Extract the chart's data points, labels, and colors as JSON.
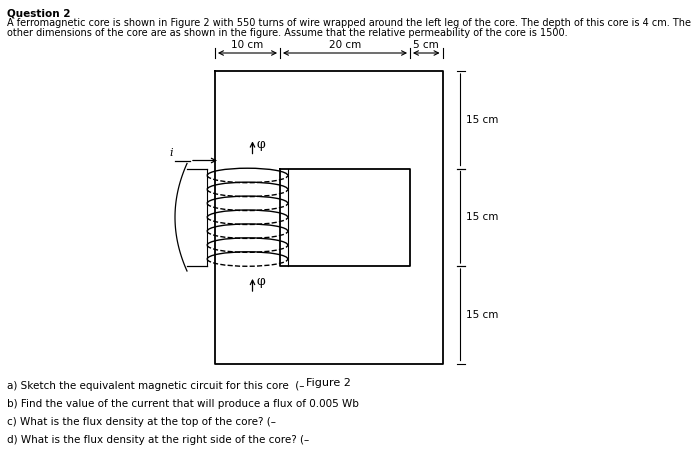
{
  "title": "Question 2",
  "desc1": "A ferromagnetic core is shown in Figure 2 with 550 turns of wire wrapped around the left leg of the core. The depth of this core is 4 cm. The",
  "desc2": "other dimensions of the core are as shown in the figure. Assume that the relative permeability of the core is 1500.",
  "figure_label": "Figure 2",
  "dim_10cm": "10 cm",
  "dim_20cm": "20 cm",
  "dim_5cm": "5 cm",
  "dim_15cm": "15 cm",
  "current_label": "i",
  "flux_label": "φ",
  "qa": "a) Sketch the equivalent magnetic circuit for this core  (–",
  "qb": "b) Find the value of the current that will produce a flux of 0.005 Wb",
  "qc": "c) What is the flux density at the top of the core? (–",
  "qd": "d) What is the flux density at the right side of the core? (–",
  "bg_color": "#ffffff"
}
